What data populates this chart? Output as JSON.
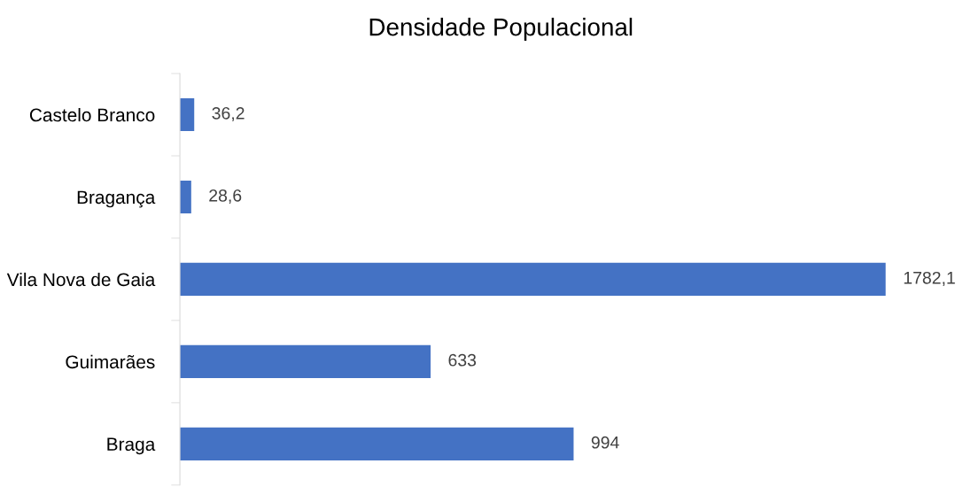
{
  "chart_data": {
    "type": "bar",
    "orientation": "horizontal",
    "title": "Densidade Populacional",
    "categories": [
      "Castelo Branco",
      "Bragança",
      "Vila Nova de Gaia",
      "Guimarães",
      "Braga"
    ],
    "values": [
      36.2,
      28.6,
      1782.1,
      633,
      994
    ],
    "value_labels": [
      "36,2",
      "28,6",
      "1782,1",
      "633",
      "994"
    ],
    "color": "#4472c4",
    "tick_labels": "y",
    "grid": false,
    "legend": false
  }
}
